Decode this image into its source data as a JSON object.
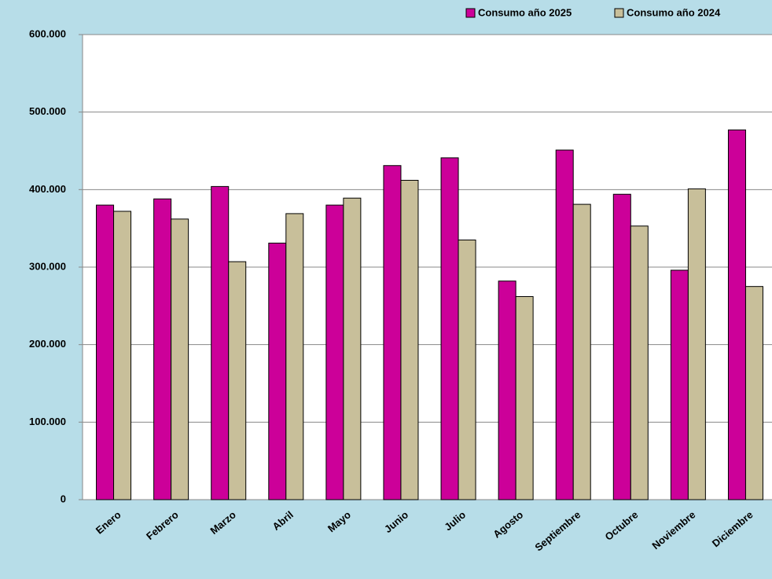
{
  "chart_data": {
    "type": "bar",
    "categories": [
      "Enero",
      "Febrero",
      "Marzo",
      "Abril",
      "Mayo",
      "Junio",
      "Julio",
      "Agosto",
      "Septiembre",
      "Octubre",
      "Noviembre",
      "Diciembre"
    ],
    "series": [
      {
        "name": "Consumo año 2025",
        "color": "#cc0099",
        "values": [
          380000,
          388000,
          404000,
          331000,
          380000,
          431000,
          441000,
          282000,
          451000,
          394000,
          296000,
          477000
        ]
      },
      {
        "name": "Consumo año 2024",
        "color": "#c8bf9a",
        "values": [
          372000,
          362000,
          307000,
          369000,
          389000,
          412000,
          335000,
          262000,
          381000,
          353000,
          401000,
          275000
        ]
      }
    ],
    "ylim": [
      0,
      600000
    ],
    "yticks": [
      0,
      {
        "value": 100000,
        "label": "100.000"
      },
      {
        "value": 200000,
        "label": "200.000"
      },
      {
        "value": 300000,
        "label": "300.000"
      },
      {
        "value": 400000,
        "label": "400.000"
      },
      {
        "value": 500000,
        "label": "500.000"
      },
      {
        "value": 600000,
        "label": "600.000"
      }
    ],
    "grid": true,
    "legend": "top-right"
  }
}
